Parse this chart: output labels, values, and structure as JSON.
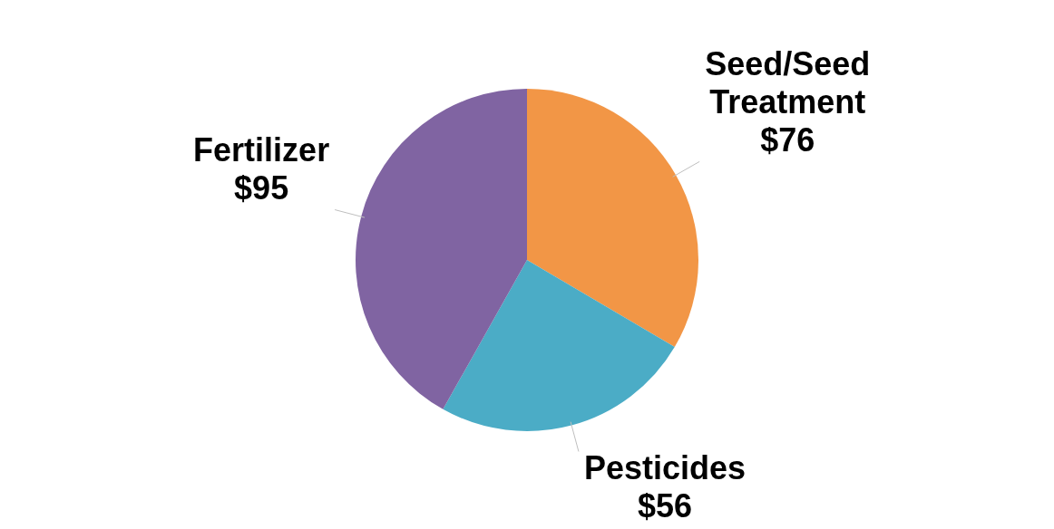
{
  "chart_data": {
    "type": "pie",
    "categories": [
      "Seed/Seed Treatment",
      "Pesticides",
      "Fertilizer"
    ],
    "values": [
      76,
      56,
      95
    ],
    "colors": [
      "#f29646",
      "#4bacc6",
      "#8064a2"
    ],
    "value_labels": [
      "$76",
      "$56",
      "$95"
    ]
  }
}
